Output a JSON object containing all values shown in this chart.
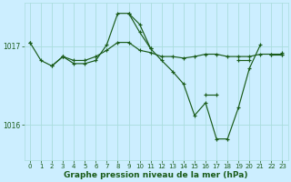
{
  "xlabel": "Graphe pression niveau de la mer (hPa)",
  "background_color": "#cceeff",
  "grid_color": "#aadddd",
  "line_color": "#1a5c1a",
  "ylim": [
    1015.55,
    1017.55
  ],
  "yticks": [
    1016,
    1017
  ],
  "xlim": [
    -0.5,
    23.5
  ],
  "xticks": [
    0,
    1,
    2,
    3,
    4,
    5,
    6,
    7,
    8,
    9,
    10,
    11,
    12,
    13,
    14,
    15,
    16,
    17,
    18,
    19,
    20,
    21,
    22,
    23
  ],
  "series": [
    [
      1017.05,
      1016.82,
      1016.75,
      1016.87,
      1016.82,
      1016.82,
      1016.87,
      1016.95,
      1017.05,
      1017.05,
      1016.95,
      1016.92,
      1016.87,
      1016.87,
      1016.85,
      1016.87,
      1016.9,
      1016.9,
      1016.87,
      1016.87,
      1016.87,
      1016.9,
      1016.9,
      1016.9
    ],
    [
      1017.05,
      null,
      null,
      1016.87,
      1016.78,
      1016.78,
      1016.82,
      1017.02,
      1017.42,
      1017.42,
      1017.18,
      1016.97,
      1016.82,
      1016.68,
      1016.52,
      1016.12,
      1016.28,
      1015.82,
      1015.82,
      1016.22,
      1016.72,
      1017.02,
      null,
      1016.92
    ],
    [
      null,
      null,
      null,
      null,
      null,
      null,
      null,
      null,
      null,
      1017.42,
      1017.28,
      1016.97,
      null,
      null,
      null,
      null,
      null,
      null,
      null,
      null,
      null,
      null,
      null,
      null
    ],
    [
      null,
      null,
      1016.75,
      1016.87,
      null,
      null,
      null,
      null,
      null,
      null,
      null,
      null,
      null,
      null,
      null,
      null,
      1016.38,
      1016.38,
      null,
      1016.82,
      1016.82,
      null,
      1016.9,
      1016.9
    ]
  ]
}
